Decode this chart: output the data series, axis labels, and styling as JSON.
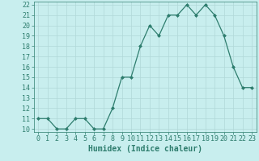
{
  "x": [
    0,
    1,
    2,
    3,
    4,
    5,
    6,
    7,
    8,
    9,
    10,
    11,
    12,
    13,
    14,
    15,
    16,
    17,
    18,
    19,
    20,
    21,
    22,
    23
  ],
  "y": [
    11,
    11,
    10,
    10,
    11,
    11,
    10,
    10,
    12,
    15,
    15,
    18,
    20,
    19,
    21,
    21,
    22,
    21,
    22,
    21,
    19,
    16,
    14,
    14
  ],
  "line_color": "#2e7d6e",
  "marker_color": "#2e7d6e",
  "bg_color": "#c8eeee",
  "grid_color": "#b0d8d8",
  "xlabel": "Humidex (Indice chaleur)",
  "xlabel_fontsize": 7,
  "tick_fontsize": 6,
  "ylim": [
    9.7,
    22.3
  ],
  "xlim": [
    -0.5,
    23.5
  ],
  "yticks": [
    10,
    11,
    12,
    13,
    14,
    15,
    16,
    17,
    18,
    19,
    20,
    21,
    22
  ],
  "xticks": [
    0,
    1,
    2,
    3,
    4,
    5,
    6,
    7,
    8,
    9,
    10,
    11,
    12,
    13,
    14,
    15,
    16,
    17,
    18,
    19,
    20,
    21,
    22,
    23
  ]
}
